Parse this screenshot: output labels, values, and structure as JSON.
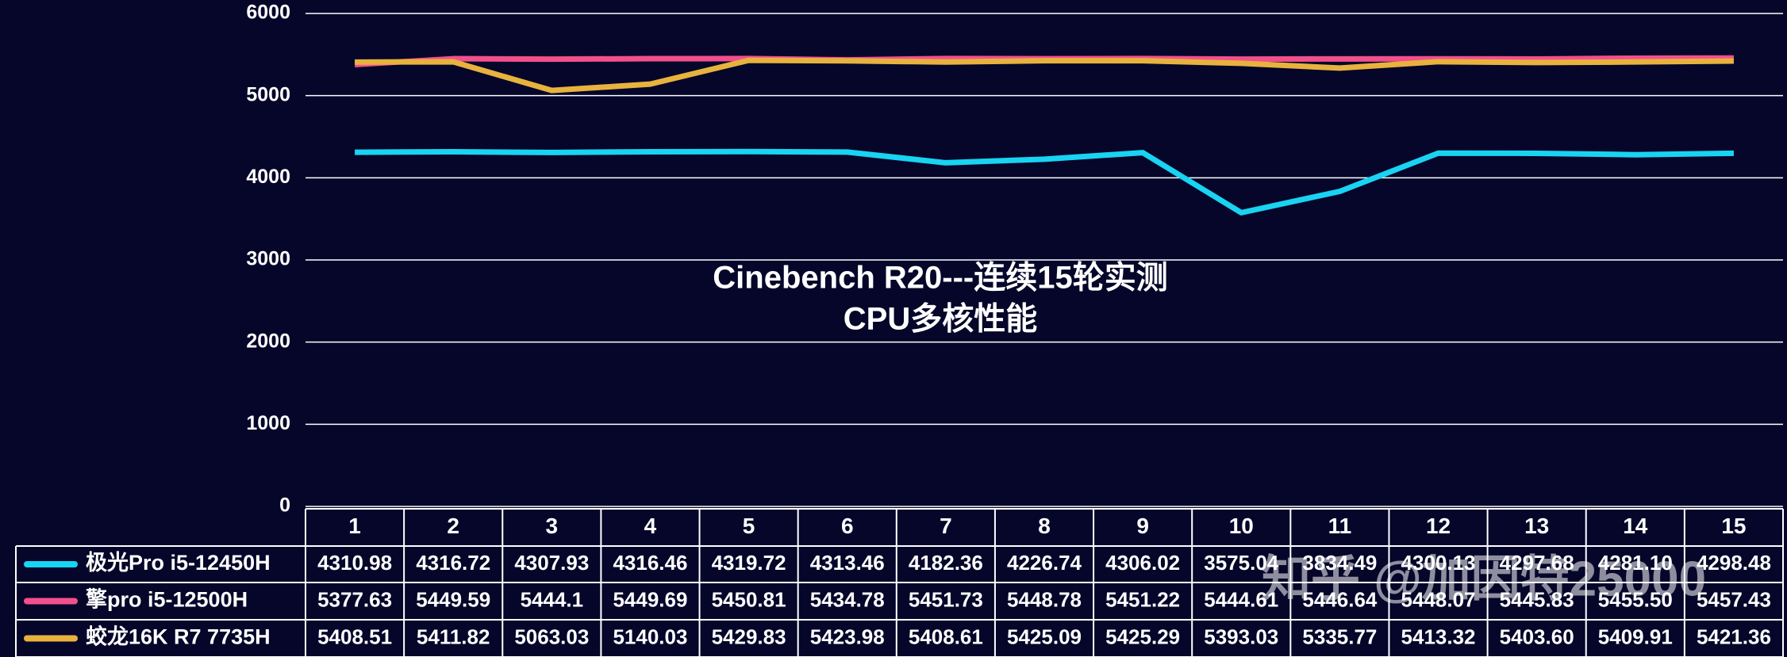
{
  "chart_data": {
    "type": "line",
    "title": "Cinebench R20---连续15轮实测",
    "subtitle": "CPU多核性能",
    "watermark": "知乎 @加因特25000",
    "categories": [
      "1",
      "2",
      "3",
      "4",
      "5",
      "6",
      "7",
      "8",
      "9",
      "10",
      "11",
      "12",
      "13",
      "14",
      "15"
    ],
    "ylim": [
      0,
      6000
    ],
    "yticks": [
      0,
      1000,
      2000,
      3000,
      4000,
      5000,
      6000
    ],
    "grid": true,
    "series": [
      {
        "name": "极光Pro i5-12450H",
        "color": "#19d3f2",
        "values": [
          4310.98,
          4316.72,
          4307.93,
          4316.46,
          4319.72,
          4313.46,
          4182.36,
          4226.74,
          4306.02,
          3575.04,
          3834.49,
          4300.13,
          4297.68,
          4281.1,
          4298.48
        ],
        "value_labels": [
          "4310.98",
          "4316.72",
          "4307.93",
          "4316.46",
          "4319.72",
          "4313.46",
          "4182.36",
          "4226.74",
          "4306.02",
          "3575.04",
          "3834.49",
          "4300.13",
          "4297.68",
          "4281.10",
          "4298.48"
        ]
      },
      {
        "name": "擎pro  i5-12500H",
        "color": "#f2508c",
        "values": [
          5377.63,
          5449.59,
          5444.1,
          5449.69,
          5450.81,
          5434.78,
          5451.73,
          5448.78,
          5451.22,
          5444.61,
          5446.64,
          5448.07,
          5445.83,
          5455.5,
          5457.43
        ],
        "value_labels": [
          "5377.63",
          "5449.59",
          "5444.1",
          "5449.69",
          "5450.81",
          "5434.78",
          "5451.73",
          "5448.78",
          "5451.22",
          "5444.61",
          "5446.64",
          "5448.07",
          "5445.83",
          "5455.50",
          "5457.43"
        ]
      },
      {
        "name": "蛟龙16K R7 7735H",
        "color": "#e8b23e",
        "values": [
          5408.51,
          5411.82,
          5063.03,
          5140.03,
          5429.83,
          5423.98,
          5408.61,
          5425.09,
          5425.29,
          5393.03,
          5335.77,
          5413.32,
          5403.6,
          5409.91,
          5421.36
        ],
        "value_labels": [
          "5408.51",
          "5411.82",
          "5063.03",
          "5140.03",
          "5429.83",
          "5423.98",
          "5408.61",
          "5425.09",
          "5425.29",
          "5393.03",
          "5335.77",
          "5413.32",
          "5403.60",
          "5409.91",
          "5421.36"
        ]
      }
    ]
  }
}
